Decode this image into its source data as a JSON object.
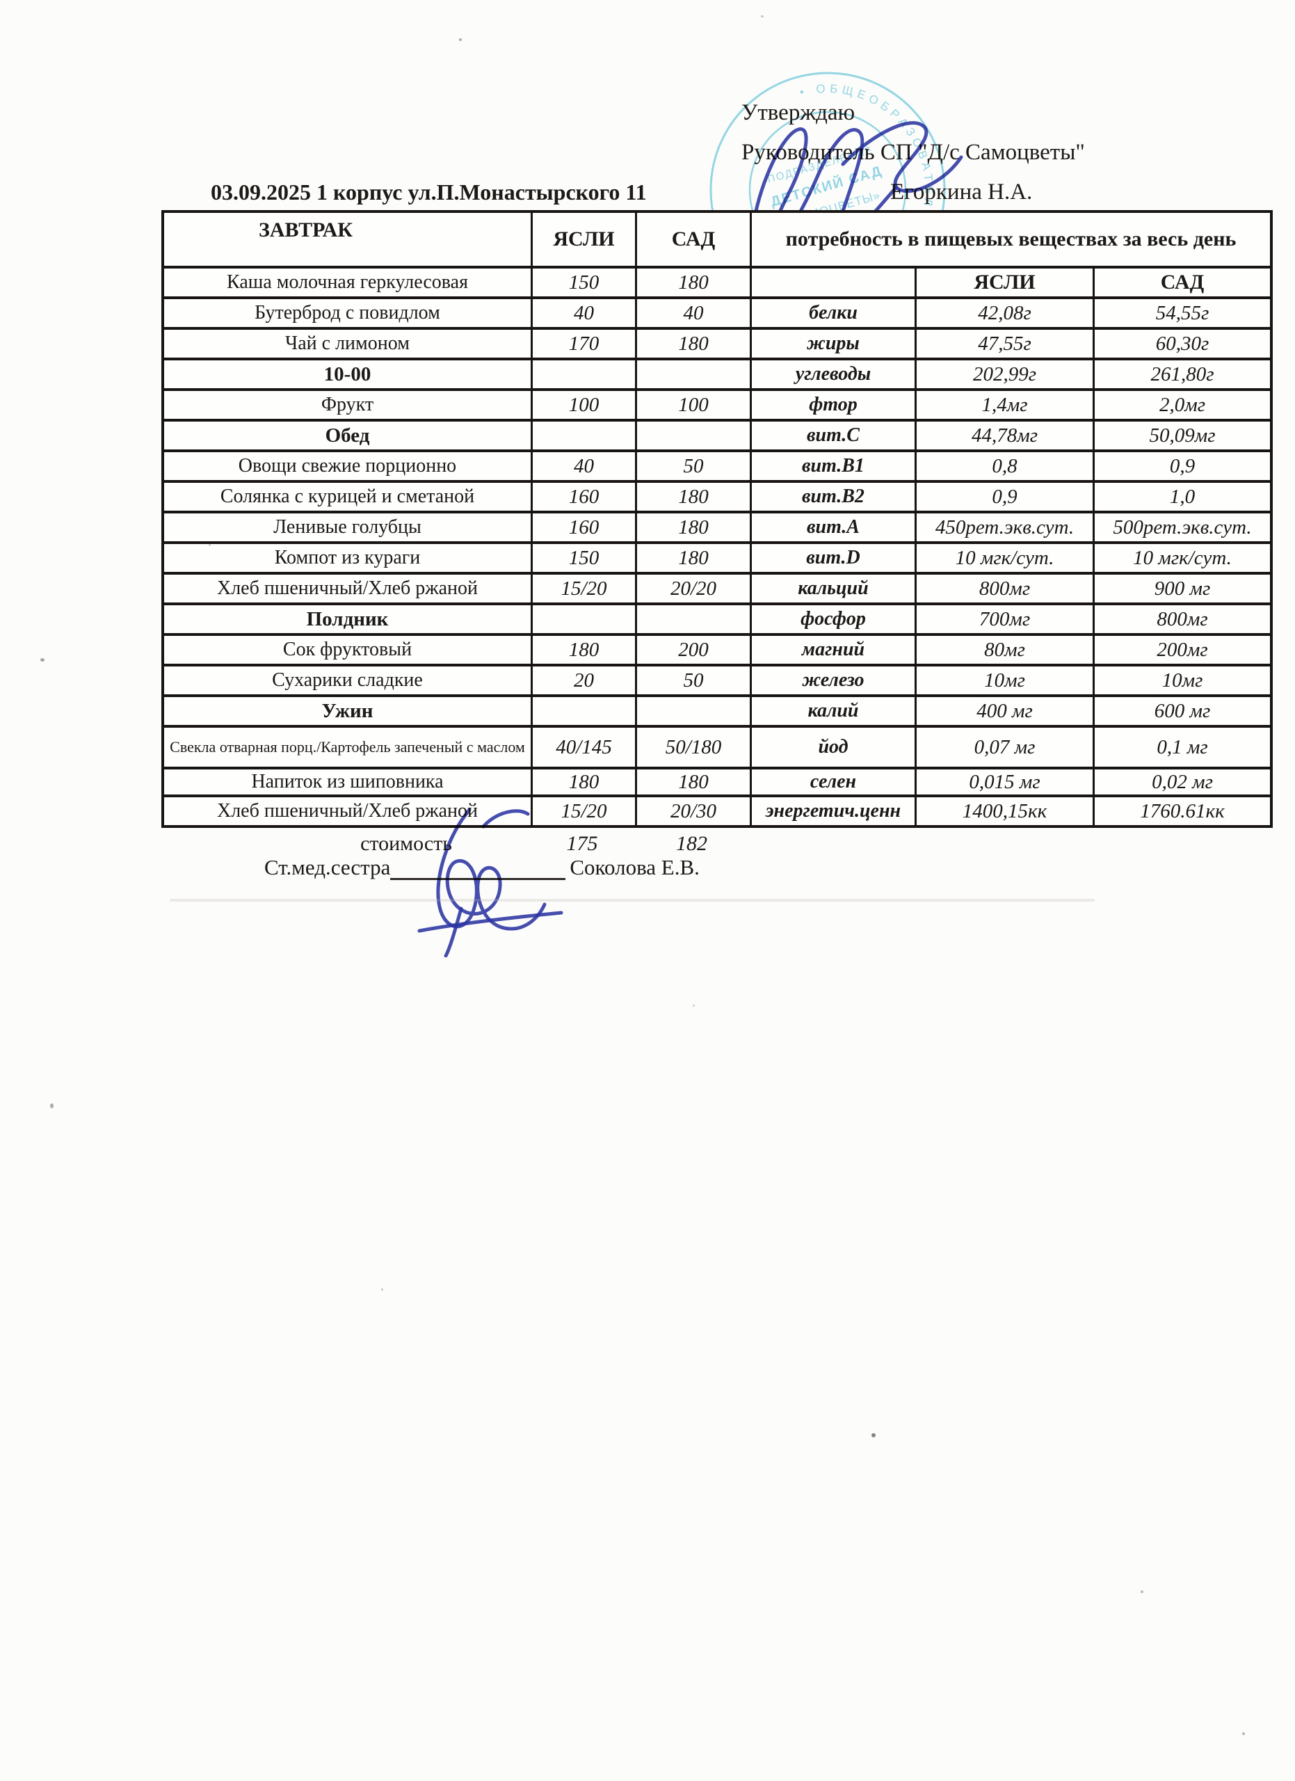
{
  "approval": {
    "line1": "Утверждаю",
    "line2": "Руководитель СП \"Д/с Самоцветы\"",
    "signer_name": "Егоркина Н.А."
  },
  "title": "03.09.2025 1 корпус ул.П.Монастырского 11",
  "stamp": {
    "ring_text": "• ОБЩЕОБРАЗОВАТЕЛЬНЫЙ ЦЕНТР\" П.Г.Т. •",
    "center_line1": "ПОДРАЗДЕЛЕНИЕ",
    "center_line2": "ДЕТСКИЙ САД",
    "center_line3": "«САМОЦВЕТЫ»"
  },
  "table": {
    "meal_header": "ЗАВТРАК",
    "col_yasli": "ЯСЛИ",
    "col_sad": "САД",
    "nutrition_header": "потребность в пищевых веществах за весь день",
    "rows": [
      {
        "dish": "Каша молочная геркулесовая",
        "py": "150",
        "ps": "180",
        "nut": "",
        "ny": "ЯСЛИ",
        "ns": "САД",
        "type": "right_header"
      },
      {
        "dish": "Бутерброд с повидлом",
        "py": "40",
        "ps": "40",
        "nut": "белки",
        "ny": "42,08г",
        "ns": "54,55г"
      },
      {
        "dish": "Чай с лимоном",
        "py": "170",
        "ps": "180",
        "nut": "жиры",
        "ny": "47,55г",
        "ns": "60,30г"
      },
      {
        "dish": "10-00",
        "py": "",
        "ps": "",
        "nut": "углеводы",
        "ny": "202,99г",
        "ns": "261,80г",
        "dish_bold": true
      },
      {
        "dish": "Фрукт",
        "py": "100",
        "ps": "100",
        "nut": "фтор",
        "ny": "1,4мг",
        "ns": "2,0мг"
      },
      {
        "dish": "Обед",
        "py": "",
        "ps": "",
        "nut": "вит.С",
        "ny": "44,78мг",
        "ns": "50,09мг",
        "dish_bold": true
      },
      {
        "dish": "Овощи свежие порционно",
        "py": "40",
        "ps": "50",
        "nut": "вит.В1",
        "ny": "0,8",
        "ns": "0,9"
      },
      {
        "dish": "Солянка  с курицей и сметаной",
        "py": "160",
        "ps": "180",
        "nut": "вит.В2",
        "ny": "0,9",
        "ns": "1,0"
      },
      {
        "dish": "Ленивые голубцы",
        "py": "160",
        "ps": "180",
        "nut": "вит.А",
        "ny": "450рет.экв.сут.",
        "ns": "500рет.экв.сут."
      },
      {
        "dish": "Компот из кураги",
        "py": "150",
        "ps": "180",
        "nut": "вит.D",
        "ny": "10 мгк/сут.",
        "ns": "10 мгк/сут."
      },
      {
        "dish": "Хлеб пшеничный/Хлеб ржаной",
        "py": "15/20",
        "ps": "20/20",
        "nut": "кальций",
        "ny": "800мг",
        "ns": "900 мг"
      },
      {
        "dish": "Полдник",
        "py": "",
        "ps": "",
        "nut": "фосфор",
        "ny": "700мг",
        "ns": "800мг",
        "dish_bold": true
      },
      {
        "dish": "Сок фруктовый",
        "py": "180",
        "ps": "200",
        "nut": "магний",
        "ny": "80мг",
        "ns": "200мг"
      },
      {
        "dish": "Сухарики сладкие",
        "py": "20",
        "ps": "50",
        "nut": "железо",
        "ny": "10мг",
        "ns": "10мг"
      },
      {
        "dish": "Ужин",
        "py": "",
        "ps": "",
        "nut": "калий",
        "ny": "400 мг",
        "ns": "600 мг",
        "dish_bold": true
      },
      {
        "dish": "Свекла отварная порц./Картофель запеченый с маслом",
        "py": "40/145",
        "ps": "50/180",
        "nut": "йод",
        "ny": "0,07 мг",
        "ns": "0,1 мг",
        "dish_small": true,
        "tall": true
      },
      {
        "dish": "Напиток из шиповника",
        "py": "180",
        "ps": "180",
        "nut": "селен",
        "ny": "0,015 мг",
        "ns": "0,02 мг"
      },
      {
        "dish": "Хлеб пшеничный/Хлеб ржаной",
        "py": "15/20",
        "ps": "20/30",
        "nut": "энергетич.ценн",
        "ny": "1400,15кк",
        "ns": "1760.61кк"
      }
    ]
  },
  "footer": {
    "cost_label": "стоимость",
    "cost_yasli": "175",
    "cost_sad": "182",
    "nurse_label": "Ст.мед.сестра",
    "nurse_name": "Соколова Е.В."
  }
}
